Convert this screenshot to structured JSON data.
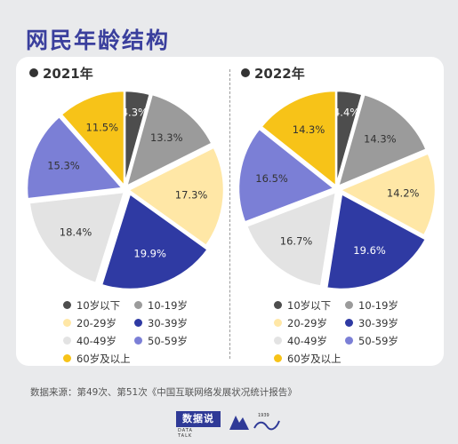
{
  "title": "网民年龄结构",
  "source": "数据来源：第49次、第51次《中国互联网络发展状况统计报告》",
  "colors": {
    "title": "#3a3f9d",
    "band_under_10": "#4d4d4d",
    "band_10_19": "#9b9b9b",
    "band_20_29": "#ffe7a6",
    "band_30_39": "#2f3aa3",
    "band_40_49": "#e3e3e3",
    "band_50_59": "#7b7fd6",
    "band_60_plus": "#f7c318"
  },
  "chart_data": [
    {
      "type": "pie",
      "title": "2021年",
      "categories": [
        "10岁以下",
        "10-19岁",
        "20-29岁",
        "30-39岁",
        "40-49岁",
        "50-59岁",
        "60岁及以上"
      ],
      "values": [
        4.3,
        13.3,
        17.3,
        19.9,
        18.4,
        15.3,
        11.5
      ],
      "labels": [
        "4.3%",
        "13.3%",
        "17.3%",
        "19.9%",
        "18.4%",
        "15.3%",
        "11.5%"
      ],
      "legend": "bottom"
    },
    {
      "type": "pie",
      "title": "2022年",
      "categories": [
        "10岁以下",
        "10-19岁",
        "20-29岁",
        "30-39岁",
        "40-49岁",
        "50-59岁",
        "60岁及以上"
      ],
      "values": [
        4.4,
        14.3,
        14.2,
        19.6,
        16.7,
        16.5,
        14.3
      ],
      "labels": [
        "4.4%",
        "14.3%",
        "14.2%",
        "19.6%",
        "16.7%",
        "16.5%",
        "14.3%"
      ],
      "legend": "bottom"
    }
  ],
  "footer": {
    "brand": "数据说",
    "brand_sub": "DATA TALK",
    "partner_year": "1939"
  }
}
